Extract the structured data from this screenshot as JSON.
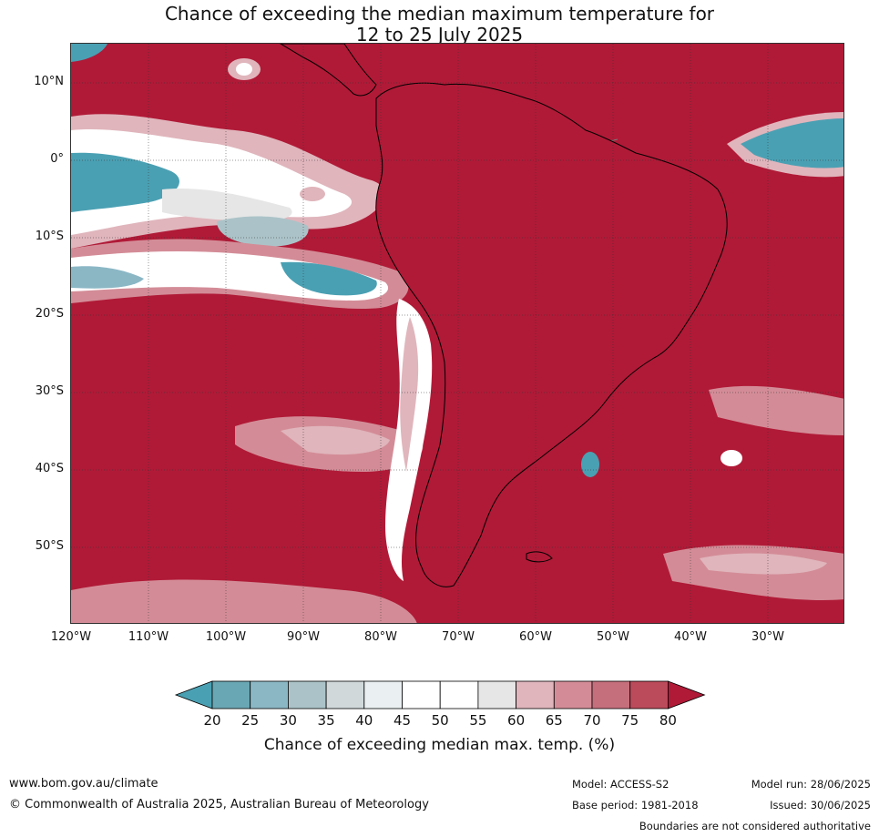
{
  "title_line1": "Chance of exceeding the median maximum temperature for",
  "title_line2": "12 to 25 July 2025",
  "lat_labels": [
    "10°N",
    "0°",
    "10°S",
    "20°S",
    "30°S",
    "40°S",
    "50°S"
  ],
  "lon_labels": [
    "120°W",
    "110°W",
    "100°W",
    "90°W",
    "80°W",
    "70°W",
    "60°W",
    "50°W",
    "40°W",
    "30°W"
  ],
  "colorbar": {
    "ticks": [
      "20",
      "25",
      "30",
      "35",
      "40",
      "45",
      "50",
      "55",
      "60",
      "65",
      "70",
      "75",
      "80"
    ],
    "colors": [
      "#4aa0b3",
      "#6aa7b4",
      "#8bb7c5",
      "#abc3c8",
      "#d0d8da",
      "#eaeff1",
      "#ffffff",
      "#ffffff",
      "#e6e6e6",
      "#e0b5bc",
      "#d38c97",
      "#c66f7c",
      "#bb4a5a",
      "#b01a37"
    ],
    "label": "Chance of exceeding median max. temp. (%)"
  },
  "footer": {
    "website": "www.bom.gov.au/climate",
    "copyright": "© Commonwealth of Australia 2025, Australian Bureau of Meteorology",
    "model": "Model: ACCESS-S2",
    "base_period": "Base period: 1981-2018",
    "model_run": "Model run: 28/06/2025",
    "issued": "Issued: 30/06/2025",
    "disclaimer": "Boundaries are not considered authoritative"
  }
}
